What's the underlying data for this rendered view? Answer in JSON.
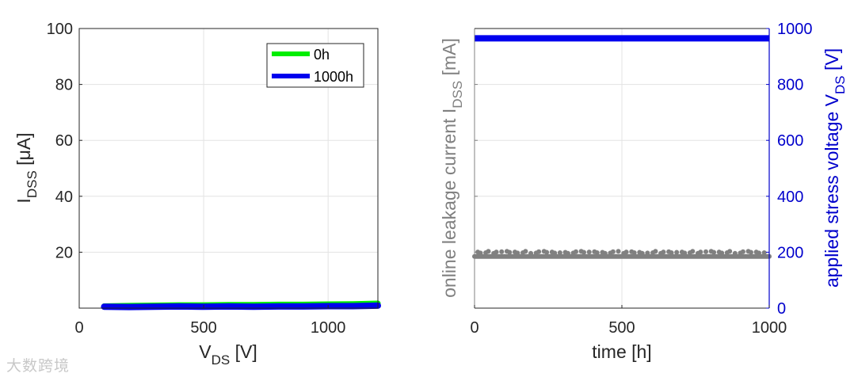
{
  "watermark": "大数跨境",
  "chart_data": [
    {
      "type": "line",
      "xlabel": "V",
      "xlabel_sub": "DS",
      "xlabel_unit": " [V]",
      "ylabel": "I",
      "ylabel_sub": "DSS",
      "ylabel_unit": " [μA]",
      "xlim": [
        0,
        1200
      ],
      "ylim": [
        0,
        100
      ],
      "x_ticks": [
        0,
        500,
        1000
      ],
      "x_tick_labels": [
        "0",
        "500",
        "1000"
      ],
      "y_ticks": [
        20,
        40,
        60,
        80,
        100
      ],
      "y_tick_labels": [
        "20",
        "40",
        "60",
        "80",
        "100"
      ],
      "grid": true,
      "legend_position": "top-right",
      "series": [
        {
          "name": "0h",
          "color": "#00ee00",
          "x": [
            100,
            200,
            300,
            400,
            500,
            600,
            700,
            800,
            900,
            1000,
            1100,
            1200
          ],
          "y": [
            0.7,
            0.9,
            1.0,
            1.1,
            1.1,
            1.2,
            1.2,
            1.3,
            1.3,
            1.4,
            1.5,
            1.7
          ]
        },
        {
          "name": "1000h",
          "color": "#0000ee",
          "x": [
            100,
            200,
            300,
            400,
            500,
            600,
            700,
            800,
            900,
            1000,
            1100,
            1200
          ],
          "y": [
            0.5,
            0.4,
            0.5,
            0.6,
            0.5,
            0.6,
            0.5,
            0.6,
            0.6,
            0.7,
            0.7,
            0.9
          ]
        }
      ]
    },
    {
      "type": "line",
      "xlabel": "time [h]",
      "ylabel_left": "online leakage current I",
      "ylabel_left_sub": "DSS",
      "ylabel_left_unit": " [mA]",
      "ylabel_right": "applied stress voltage V",
      "ylabel_right_sub": "DS",
      "ylabel_right_unit": " [V]",
      "xlim": [
        0,
        1000
      ],
      "ylim_right": [
        0,
        1000
      ],
      "x_ticks": [
        0,
        500,
        1000
      ],
      "x_tick_labels": [
        "0",
        "500",
        "1000"
      ],
      "y_right_ticks": [
        0,
        200,
        400,
        600,
        800,
        1000
      ],
      "y_right_tick_labels": [
        "0",
        "200",
        "400",
        "600",
        "800",
        "1000"
      ],
      "grid": true,
      "series": [
        {
          "name": "",
          "axis": "left",
          "color": "#808080",
          "x": [
            0,
            100,
            200,
            300,
            400,
            500,
            600,
            700,
            800,
            900,
            1000
          ],
          "y": [
            185,
            185,
            185,
            185,
            185,
            185,
            185,
            185,
            185,
            185,
            185
          ]
        },
        {
          "name": "",
          "axis": "right",
          "color": "#0000ee",
          "x": [
            0,
            1000
          ],
          "y": [
            965,
            965
          ]
        }
      ]
    }
  ]
}
